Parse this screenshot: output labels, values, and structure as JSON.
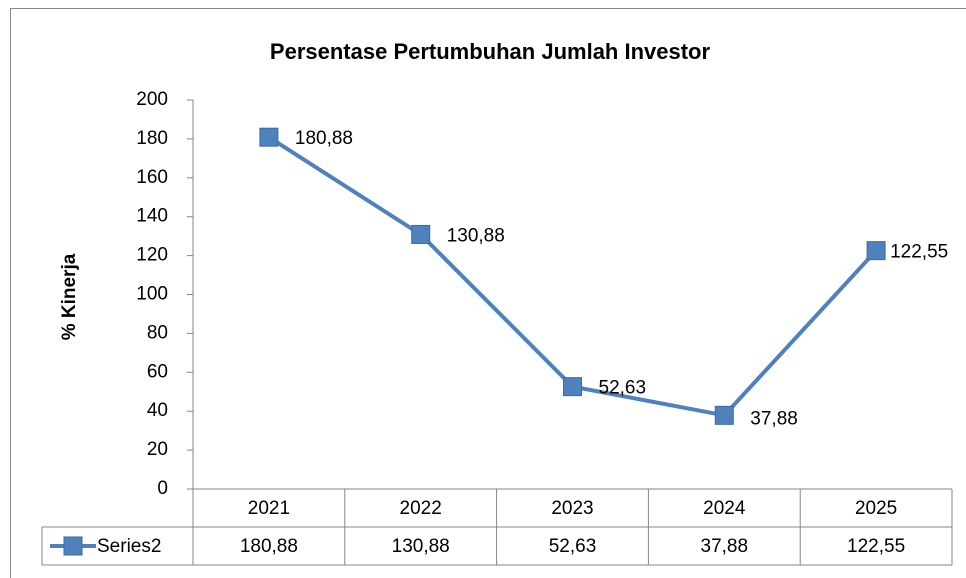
{
  "chart_data": {
    "type": "line",
    "title": "Persentase Pertumbuhan Jumlah Investor",
    "y_label": "% Kinerja",
    "categories": [
      "2021",
      "2022",
      "2023",
      "2024",
      "2025"
    ],
    "series": [
      {
        "name": "Series2",
        "color": "#4f81bd",
        "values": [
          180.88,
          130.88,
          52.63,
          37.88,
          122.55
        ],
        "value_labels": [
          "180,88",
          "130,88",
          "52,63",
          "37,88",
          "122,55"
        ]
      }
    ],
    "ylim": [
      0,
      200
    ],
    "yticks": [
      0,
      20,
      40,
      60,
      80,
      100,
      120,
      140,
      160,
      180,
      200
    ],
    "grid": false,
    "data_table": true
  }
}
